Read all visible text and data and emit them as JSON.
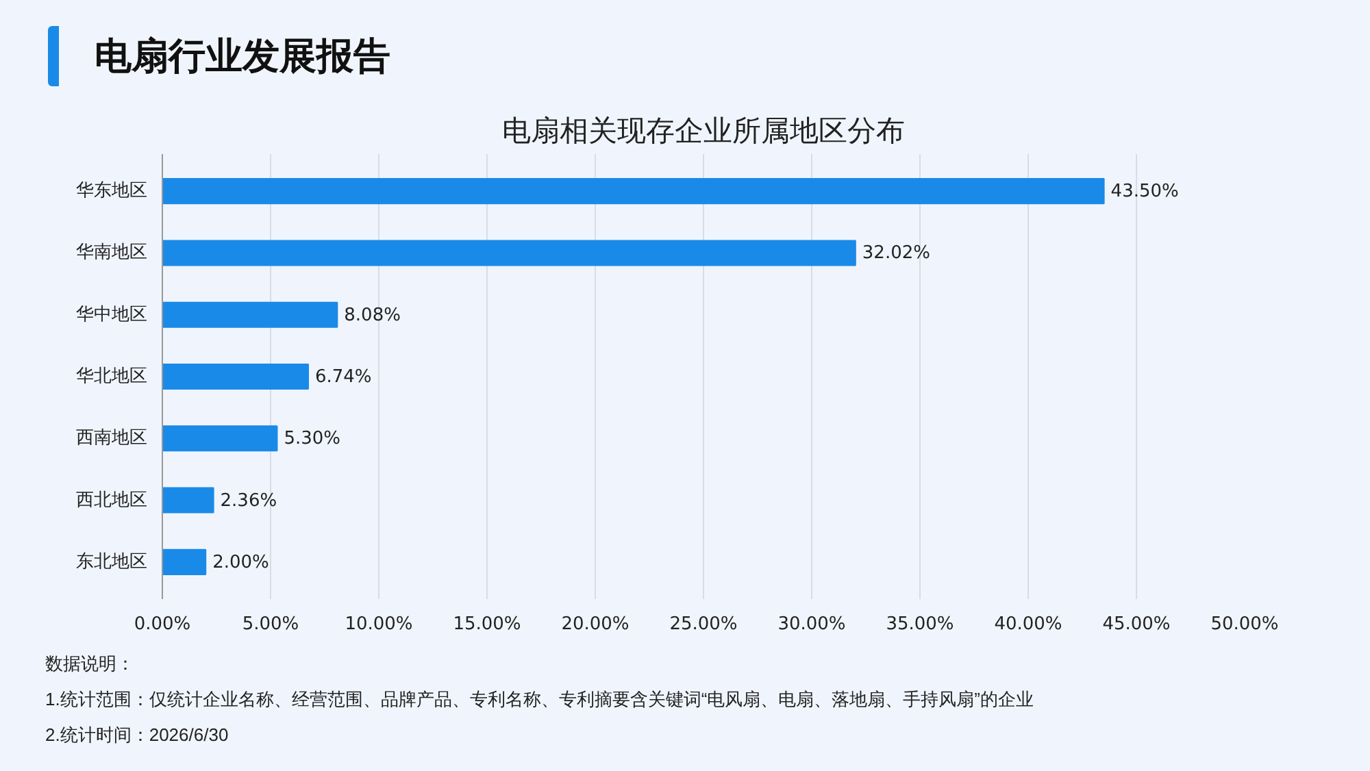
{
  "chart_data": {
    "type": "bar",
    "orientation": "horizontal",
    "title": "电扇行业发展报告",
    "subtitle": "电扇相关现存企业所属地区分布",
    "categories": [
      "华东地区",
      "华南地区",
      "华中地区",
      "华北地区",
      "西南地区",
      "西北地区",
      "东北地区"
    ],
    "values": [
      43.5,
      32.02,
      8.08,
      6.74,
      5.3,
      2.36,
      2.0
    ],
    "value_labels": [
      "43.50%",
      "32.02%",
      "8.08%",
      "6.74%",
      "5.30%",
      "2.36%",
      "2.00%"
    ],
    "color": "#1a8ae8",
    "xlim": [
      0,
      50
    ],
    "xticks": [
      {
        "value": 0,
        "label": "0.00%"
      },
      {
        "value": 5,
        "label": "5.00%"
      },
      {
        "value": 10,
        "label": "10.00%"
      },
      {
        "value": 15,
        "label": "15.00%"
      },
      {
        "value": 20,
        "label": "20.00%"
      },
      {
        "value": 25,
        "label": "25.00%"
      },
      {
        "value": 30,
        "label": "30.00%"
      },
      {
        "value": 35,
        "label": "35.00%"
      },
      {
        "value": 40,
        "label": "40.00%"
      },
      {
        "value": 45,
        "label": "45.00%"
      },
      {
        "value": 50,
        "label": "50.00%"
      }
    ],
    "grid": "x",
    "annotations": [
      "数据说明：",
      "1.统计范围：仅统计企业名称、经营范围、品牌产品、专利名称、专利摘要含关键词“电风扇、电扇、落地扇、手持风扇”的企业",
      "2.统计时间：2026/6/30"
    ]
  }
}
